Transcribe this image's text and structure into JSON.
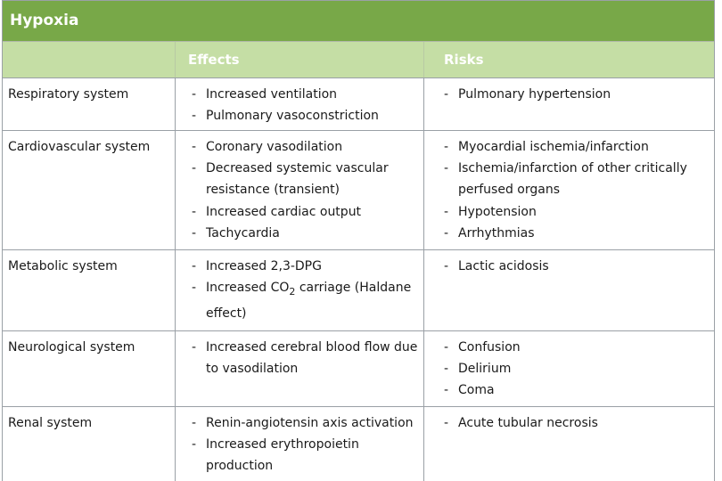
{
  "title": "Hypoxia",
  "headers": {
    "system": "",
    "effects": "Effects",
    "risks": "Risks"
  },
  "rows": [
    {
      "system": "Respiratory system",
      "effects": [
        "Increased ventilation",
        "Pulmonary vasoconstriction"
      ],
      "risks": [
        "Pulmonary hypertension"
      ]
    },
    {
      "system": "Cardiovascular system",
      "effects": [
        "Coronary vasodilation",
        "Decreased systemic vascular resistance (transient)",
        "Increased cardiac output",
        "Tachycardia"
      ],
      "risks": [
        "Myocardial ischemia/infarction",
        "Ischemia/infarction of other critically perfused organs",
        "Hypotension",
        "Arrhythmias"
      ]
    },
    {
      "system": "Metabolic system",
      "effects": [
        "Increased 2,3-DPG",
        "Increased CO2 carriage (Haldane effect)"
      ],
      "risks": [
        "Lactic acidosis"
      ]
    },
    {
      "system": "Neurological system",
      "effects": [
        "Increased cerebral blood flow due to vasodilation"
      ],
      "risks": [
        "Confusion",
        "Delirium",
        "Coma"
      ]
    },
    {
      "system": "Renal system",
      "effects": [
        "Renin-angiotensin axis activation",
        "Increased erythropoietin production"
      ],
      "risks": [
        "Acute tubular necrosis"
      ]
    }
  ],
  "colors": {
    "title_bar": "#78a848",
    "header_row": "#c5dea5",
    "border": "#9aa0a6"
  }
}
